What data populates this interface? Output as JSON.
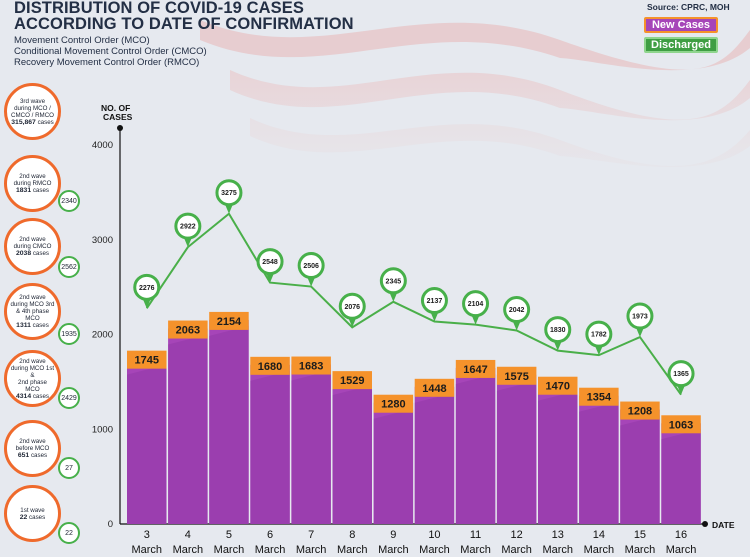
{
  "title_line1": "DISTRIBUTION OF COVID-19 CASES",
  "title_line2": "ACCORDING TO DATE OF CONFIRMATION",
  "subtitle_lines": [
    "Movement Control Order (MCO)",
    "Conditional Movement Control Order (CMCO)",
    "Recovery Movement Control Order (RMCO)"
  ],
  "source": "Source: CPRC, MOH",
  "legend": {
    "new_cases": "New Cases",
    "discharged": "Discharged"
  },
  "colors": {
    "bar": "#a645b8",
    "bar_shade": "#8f35a3",
    "bar_label": "#f5922b",
    "line": "#4aaf49",
    "marker": "#47b04a",
    "wave_ring": "#ef6a2c",
    "text": "#232f45"
  },
  "waves": [
    {
      "lines": [
        "3rd wave",
        "during MCO /",
        "CMCO / RMCO"
      ],
      "count": "315,867",
      "suffix": "cases",
      "badge": ""
    },
    {
      "lines": [
        "2nd wave",
        "during RMCO"
      ],
      "count": "1831",
      "suffix": "cases",
      "badge": "2340"
    },
    {
      "lines": [
        "2nd wave",
        "during CMCO"
      ],
      "count": "2038",
      "suffix": "cases",
      "badge": "2562"
    },
    {
      "lines": [
        "2nd wave",
        "during MCO 3rd",
        "& 4th phase MCO"
      ],
      "count": "1311",
      "suffix": "cases",
      "badge": "1935"
    },
    {
      "lines": [
        "2nd wave",
        "during MCO 1st &",
        "2nd phase MCO"
      ],
      "count": "4314",
      "suffix": "cases",
      "badge": "2429"
    },
    {
      "lines": [
        "2nd wave",
        "before MCO"
      ],
      "count": "651",
      "suffix": "cases",
      "badge": "27"
    },
    {
      "lines": [
        "1st wave"
      ],
      "count": "22",
      "suffix": "cases",
      "badge": "22"
    }
  ],
  "chart_data": {
    "type": "bar",
    "ylabel": "NO. OF CASES",
    "xlabel": "DATE",
    "ylim": [
      0,
      4000
    ],
    "yticks": [
      0,
      1000,
      2000,
      3000,
      4000
    ],
    "categories": [
      "3",
      "4",
      "5",
      "6",
      "7",
      "8",
      "9",
      "10",
      "11",
      "12",
      "13",
      "14",
      "15",
      "16"
    ],
    "category_suffix": "March",
    "series": [
      {
        "name": "New Cases",
        "type": "bar",
        "values": [
          1745,
          2063,
          2154,
          1680,
          1683,
          1529,
          1280,
          1448,
          1647,
          1575,
          1470,
          1354,
          1208,
          1063
        ]
      },
      {
        "name": "Discharged",
        "type": "line",
        "values": [
          2276,
          2922,
          3275,
          2548,
          2506,
          2076,
          2345,
          2137,
          2104,
          2042,
          1830,
          1782,
          1973,
          1365
        ]
      }
    ]
  }
}
